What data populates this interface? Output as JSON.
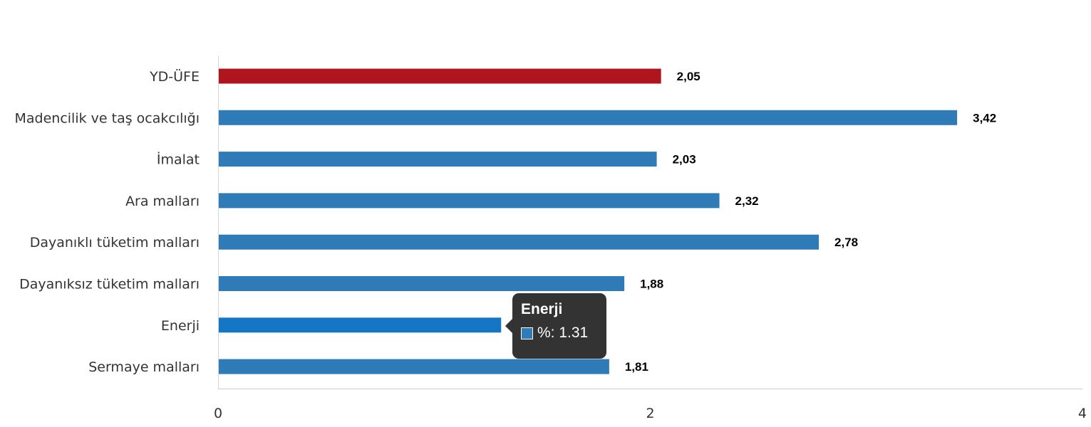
{
  "chart_data": {
    "type": "bar",
    "orientation": "horizontal",
    "categories": [
      "YD-ÜFE",
      "Madencilik ve taş ocakcılığı",
      "İmalat",
      "Ara malları",
      "Dayanıklı tüketim malları",
      "Dayanıksız tüketim malları",
      "Enerji",
      "Sermaye malları"
    ],
    "values": [
      2.05,
      3.42,
      2.03,
      2.32,
      2.78,
      1.88,
      1.31,
      1.81
    ],
    "value_labels": [
      "2,05",
      "3,42",
      "2,03",
      "2,32",
      "2,78",
      "1,88",
      "1,31",
      "1,81"
    ],
    "bar_colors": [
      "#b0151d",
      "#2f7bb8",
      "#2f7bb8",
      "#2f7bb8",
      "#2f7bb8",
      "#2f7bb8",
      "#1476c4",
      "#2f7bb8"
    ],
    "xlim": [
      0,
      4
    ],
    "xticks": [
      "0",
      "2",
      "4"
    ],
    "grid": false,
    "legend": "none"
  },
  "tooltip": {
    "title": "Enerji",
    "series_label": "%: 1.31",
    "swatch_color": "#2f7bb8"
  }
}
